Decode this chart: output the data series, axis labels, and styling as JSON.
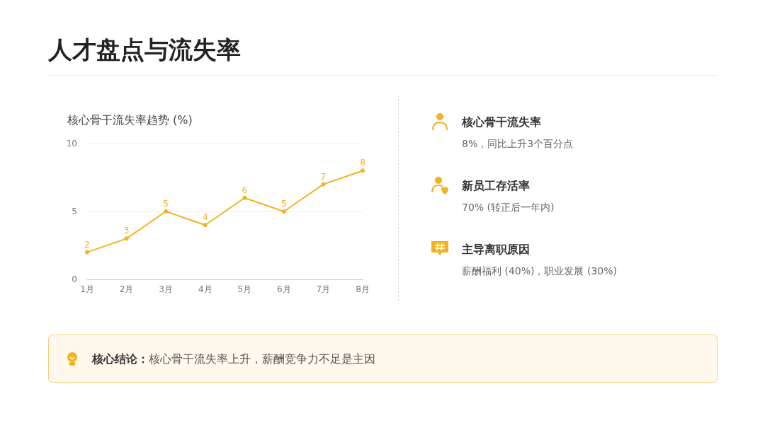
{
  "chart_data": {
    "type": "line",
    "title": "人才盘点与流失率",
    "subtitle": "核心骨干流失率趋势 (%)",
    "categories": [
      "1月",
      "2月",
      "3月",
      "4月",
      "5月",
      "6月",
      "7月",
      "8月"
    ],
    "series": [
      {
        "color": "#f0b323",
        "values": [
          2,
          3,
          5,
          4,
          6,
          5,
          7,
          8
        ]
      }
    ],
    "ylim": [
      0,
      10
    ],
    "yticks": [
      0,
      5,
      10
    ],
    "grid": "y",
    "marker": "circle",
    "line_style": "solid",
    "data_labels": true,
    "annotations": [
      "核心骨干流失率",
      "8%，同比上升3个百分点",
      "新员工存活率",
      "70% (转正后一年内)",
      "主导离职原因",
      "薪酬福利 (40%)，职业发展 (30%)",
      "核心结论：",
      "核心骨干流失率上升，薪酬竞争力不足是主因"
    ]
  }
}
